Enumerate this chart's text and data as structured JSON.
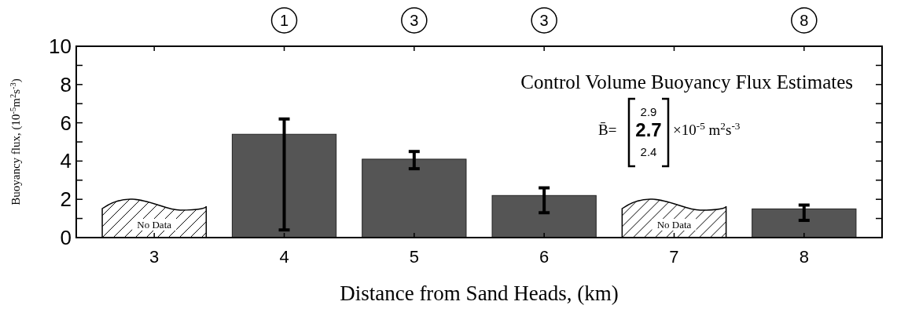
{
  "chart_data": {
    "type": "bar",
    "title": "Control Volume Buoyancy Flux Estimates",
    "xlabel": "Distance from Sand Heads, (km)",
    "ylabel": "Buoyancy flux, (10$^{-5}$m$^{2}$s$^{-3}$)",
    "categories": [
      "3",
      "4",
      "5",
      "6",
      "7",
      "8"
    ],
    "values": [
      null,
      5.4,
      4.1,
      2.2,
      null,
      1.5
    ],
    "errors": [
      null,
      [
        0.4,
        6.2
      ],
      [
        3.6,
        4.5
      ],
      [
        1.3,
        2.6
      ],
      null,
      [
        0.9,
        1.7
      ]
    ],
    "color": "#555555",
    "ylim": [
      0,
      10
    ],
    "yticks": [
      0,
      {
        "value": 1,
        "label": null
      },
      2,
      {
        "value": 3,
        "label": null
      },
      4,
      {
        "value": 5,
        "label": null
      },
      6,
      {
        "value": 7,
        "label": null
      },
      8,
      {
        "value": 9,
        "label": null
      },
      10
    ],
    "annotations": [
      {
        "text": "1",
        "x": "4"
      },
      {
        "text": "3",
        "x": "5"
      },
      {
        "text": "3",
        "x": "6"
      },
      {
        "text": "8",
        "x": "8"
      },
      "No Data",
      "No Data",
      "B̄=",
      "2.9",
      "2.7",
      "2.4",
      "×10$^{-5}$ m$^{2}$s$^{-3}$"
    ]
  }
}
